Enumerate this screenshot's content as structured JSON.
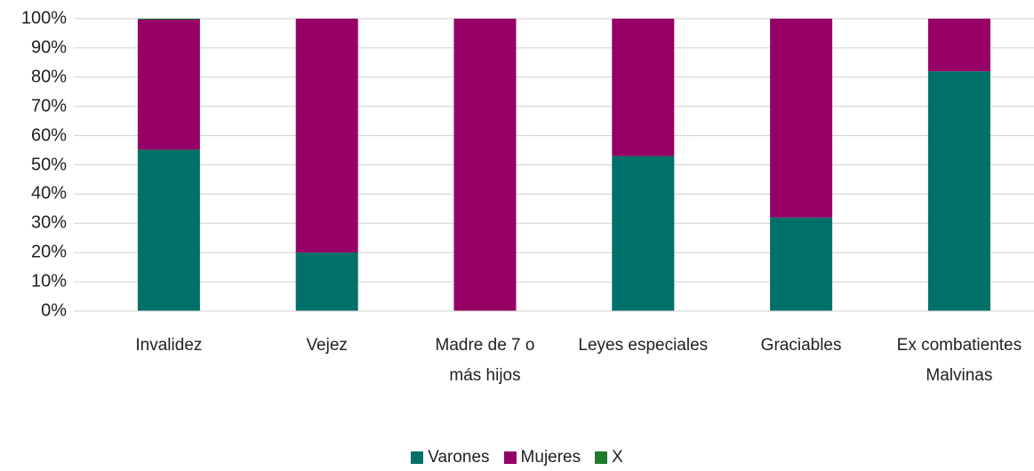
{
  "chart_data": {
    "type": "stacked_bar",
    "categories": [
      "Invalidez",
      "Vejez",
      "Madre de 7 o más hijos",
      "Leyes especiales",
      "Graciables",
      "Ex combatientes Malvinas"
    ],
    "series": [
      {
        "name": "Varones",
        "color": "#007068",
        "values": [
          55.2,
          20,
          0,
          53,
          32,
          82
        ]
      },
      {
        "name": "Mujeres",
        "color": "#960066",
        "values": [
          44.5,
          80,
          100,
          47,
          68,
          18
        ]
      },
      {
        "name": "X",
        "color": "#1e7a2e",
        "values": [
          0.3,
          0,
          0,
          0,
          0,
          0
        ]
      }
    ],
    "ylim": [
      0,
      100
    ],
    "yticks": [
      {
        "value": 0,
        "label": "0%"
      },
      {
        "value": 10,
        "label": "10%"
      },
      {
        "value": 20,
        "label": "20%"
      },
      {
        "value": 30,
        "label": "30%"
      },
      {
        "value": 40,
        "label": "40%"
      },
      {
        "value": 50,
        "label": "50%"
      },
      {
        "value": 60,
        "label": "60%"
      },
      {
        "value": 70,
        "label": "70%"
      },
      {
        "value": 80,
        "label": "80%"
      },
      {
        "value": 90,
        "label": "90%"
      },
      {
        "value": 100,
        "label": "100%"
      }
    ],
    "grid": true,
    "legend": "bottom"
  }
}
